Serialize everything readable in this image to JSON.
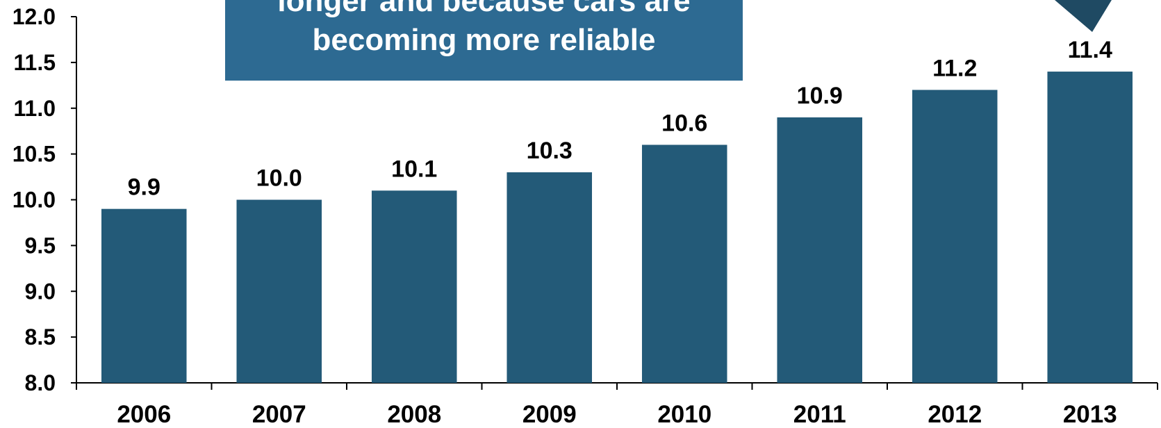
{
  "callout": {
    "lines": [
      "longer and because cars are",
      "becoming more reliable"
    ]
  },
  "colors": {
    "bar": "#235a78",
    "callout_bg": "#2d6a92",
    "arrow": "#1f4a63",
    "axis": "#000000"
  },
  "chart_data": {
    "type": "bar",
    "categories": [
      "2006",
      "2007",
      "2008",
      "2009",
      "2010",
      "2011",
      "2012",
      "2013"
    ],
    "values": [
      9.9,
      10.0,
      10.1,
      10.3,
      10.6,
      10.9,
      11.2,
      11.4
    ],
    "data_labels": [
      "9.9",
      "10.0",
      "10.1",
      "10.3",
      "10.6",
      "10.9",
      "11.2",
      "11.4"
    ],
    "ylim": [
      8.0,
      12.0
    ],
    "y_ticks": [
      "8.0",
      "8.5",
      "9.0",
      "9.5",
      "10.0",
      "10.5",
      "11.0",
      "11.5",
      "12.0"
    ],
    "title": "",
    "xlabel": "",
    "ylabel": "",
    "grid": false
  }
}
